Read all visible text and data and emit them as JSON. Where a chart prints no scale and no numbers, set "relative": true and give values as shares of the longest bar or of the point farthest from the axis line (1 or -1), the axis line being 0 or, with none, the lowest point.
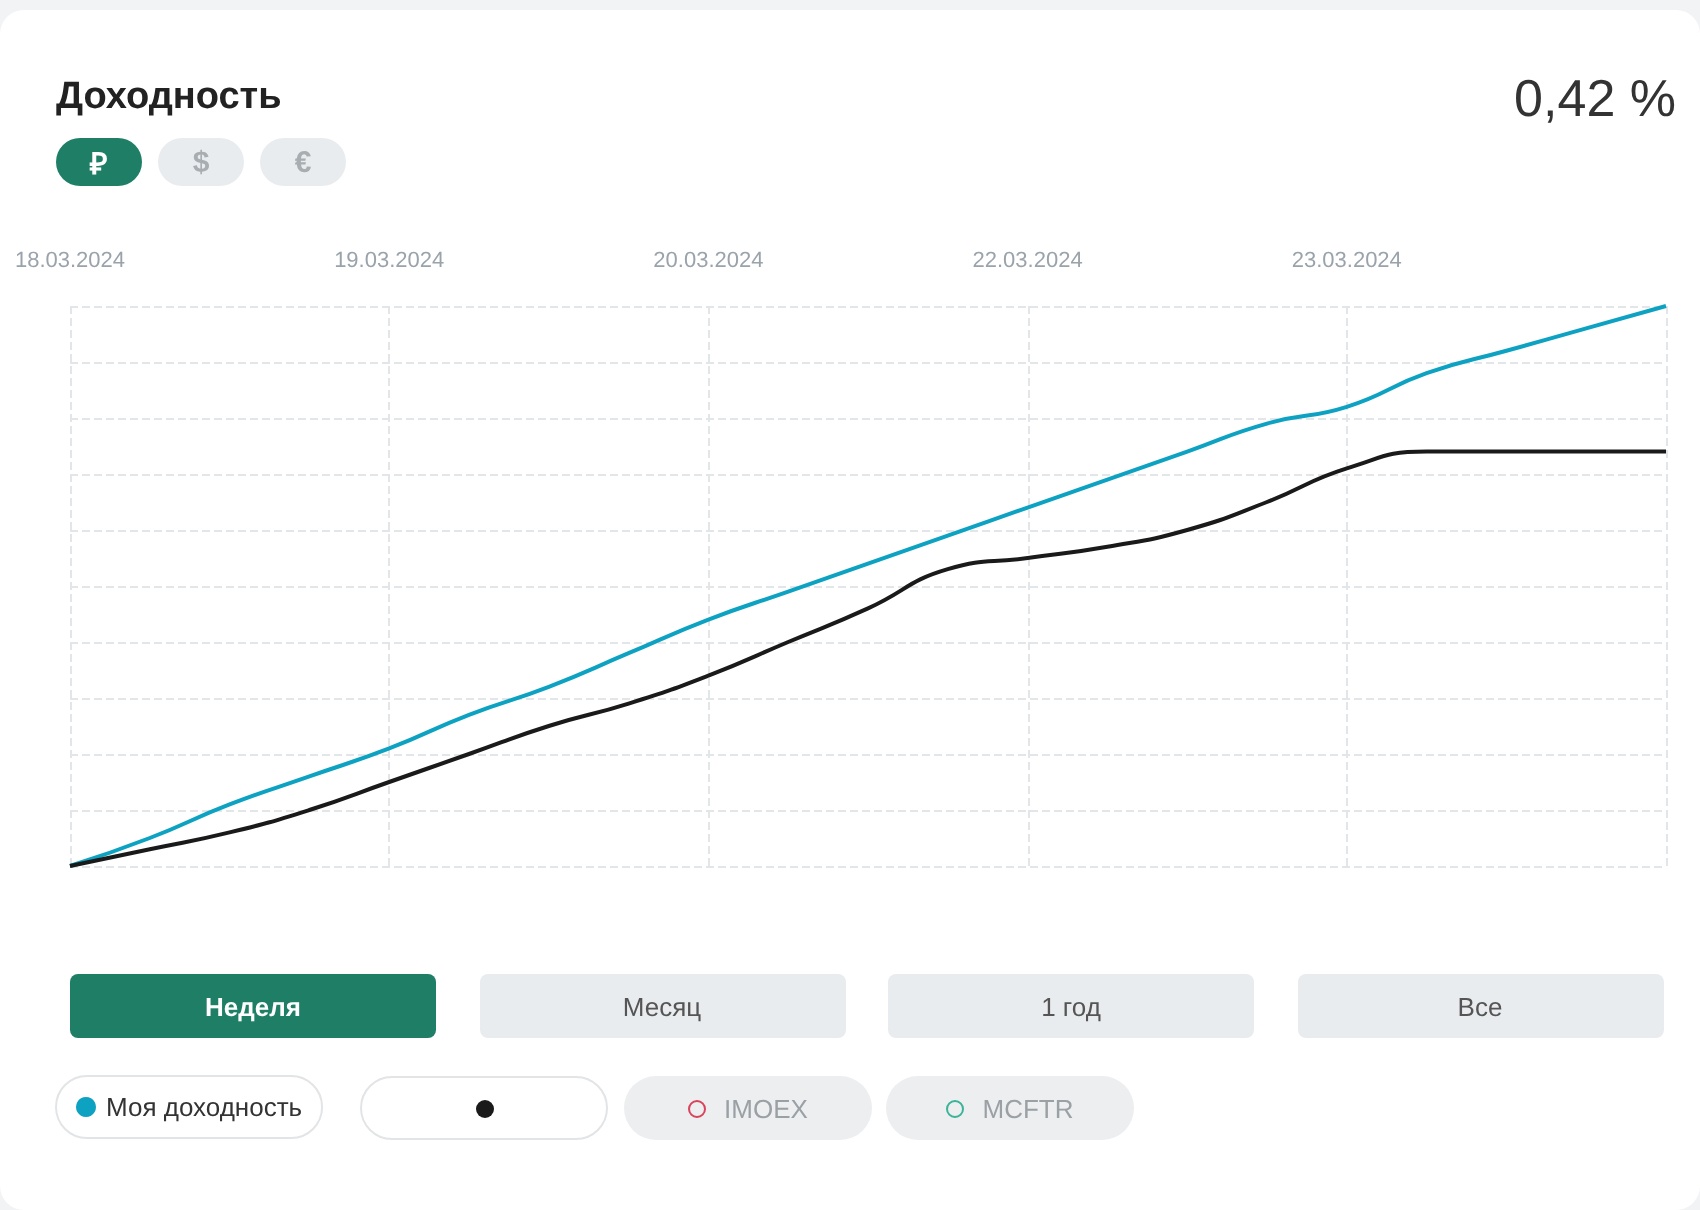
{
  "chart_data": {
    "type": "line",
    "title": "Доходность",
    "subtitle": "0,42 %",
    "relative": true,
    "grid": true,
    "legend": "bottom left",
    "categories": [
      "18.03.2024",
      null,
      null,
      null,
      "19.03.2024",
      null,
      null,
      null,
      "20.03.2024",
      null,
      null,
      null,
      "22.03.2024",
      null,
      null,
      null,
      "23.03.2024",
      null,
      null,
      null,
      null
    ],
    "series": [
      {
        "name": "Моя доходность",
        "color": "#0ea2c2",
        "values": [
          0,
          0.05,
          0.11,
          0.16,
          0.21,
          0.27,
          0.32,
          0.38,
          0.44,
          0.49,
          0.54,
          0.59,
          0.64,
          0.69,
          0.74,
          0.79,
          0.82,
          0.88,
          0.92,
          0.96,
          1
        ]
      },
      {
        "color": "#1a1a1a",
        "values": [
          0,
          0.03,
          0.06,
          0.1,
          0.15,
          0.2,
          0.25,
          0.29,
          0.34,
          0.4,
          0.46,
          0.53,
          0.55,
          0.57,
          0.6,
          0.65,
          0.71,
          0.74,
          0.74,
          0.74,
          0.74
        ]
      }
    ],
    "annotations": [
      "₽",
      "$",
      "€",
      "Неделя",
      "Месяц",
      "1 год",
      "Все",
      "IMOEX",
      "MCFTR"
    ]
  }
}
